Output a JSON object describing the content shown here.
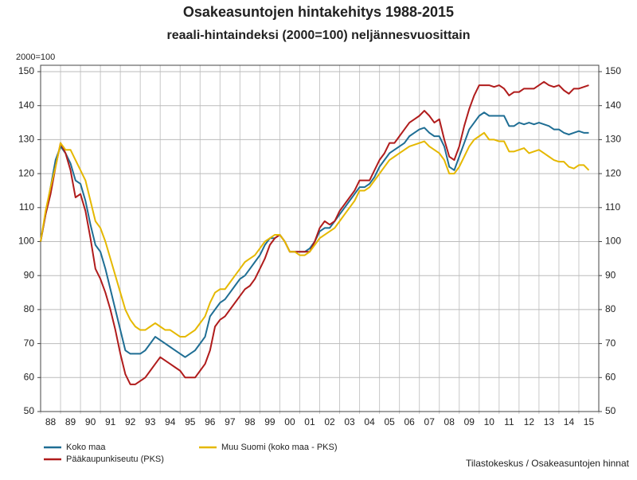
{
  "chart_data": {
    "type": "line",
    "title": "Osakeasuntojen hintakehitys 1988-2015",
    "subtitle": "reaali-hintaindeksi (2000=100) neljännesvuosittain",
    "y_label": "2000=100",
    "source": "Tilastokeskus / Osakeasuntojen hinnat",
    "categories": [
      null,
      "88",
      null,
      null,
      null,
      "89",
      null,
      null,
      null,
      "90",
      null,
      null,
      null,
      "91",
      null,
      null,
      null,
      "92",
      null,
      null,
      null,
      "93",
      null,
      null,
      null,
      "94",
      null,
      null,
      null,
      "95",
      null,
      null,
      null,
      "96",
      null,
      null,
      null,
      "97",
      null,
      null,
      null,
      "98",
      null,
      null,
      null,
      "99",
      null,
      null,
      null,
      "00",
      null,
      null,
      null,
      "01",
      null,
      null,
      null,
      "02",
      null,
      null,
      null,
      "03",
      null,
      null,
      null,
      "04",
      null,
      null,
      null,
      "05",
      null,
      null,
      null,
      "06",
      null,
      null,
      null,
      "07",
      null,
      null,
      null,
      "08",
      null,
      null,
      null,
      "09",
      null,
      null,
      null,
      "10",
      null,
      null,
      null,
      "11",
      null,
      null,
      null,
      "12",
      null,
      null,
      null,
      "13",
      null,
      null,
      null,
      "14",
      null,
      null,
      null,
      "15",
      null
    ],
    "series": [
      {
        "name": "Koko maa",
        "color": "#1f6e94",
        "values": [
          100,
          108,
          116,
          124,
          128,
          126,
          123,
          118,
          117,
          112,
          105,
          99,
          97,
          92,
          86,
          80,
          74,
          68,
          67,
          67,
          67,
          68,
          70,
          72,
          71,
          70,
          69,
          68,
          67,
          66,
          67,
          68,
          70,
          72,
          78,
          80,
          82,
          83,
          85,
          87,
          89,
          90,
          92,
          94,
          96,
          99,
          101,
          101,
          102,
          100,
          97,
          97,
          97,
          97,
          98,
          100,
          103,
          104,
          104,
          106,
          108,
          110,
          112,
          114,
          116,
          116,
          117,
          119,
          122,
          124,
          126,
          127,
          128,
          129,
          131,
          132,
          133,
          133.5,
          132,
          131,
          131,
          128,
          122,
          121,
          125,
          129,
          133,
          135,
          137,
          138,
          137,
          137,
          137,
          137,
          134,
          134,
          135,
          134.5,
          135,
          134.5,
          135,
          134.5,
          134,
          133,
          133,
          132,
          131.5,
          132,
          132.5,
          132,
          132
        ]
      },
      {
        "name": "Pääkaupunkiseutu (PKS)",
        "color": "#b01c1c",
        "values": [
          100,
          108,
          114,
          122,
          129,
          126,
          121,
          113,
          114,
          109,
          101,
          92,
          89,
          85,
          80,
          74,
          67,
          61,
          58,
          58,
          59,
          60,
          62,
          64,
          66,
          65,
          64,
          63,
          62,
          60,
          60,
          60,
          62,
          64,
          68,
          75,
          77,
          78,
          80,
          82,
          84,
          86,
          87,
          89,
          92,
          95,
          99,
          101,
          102,
          100,
          97,
          97,
          97,
          97,
          97,
          100,
          104,
          106,
          105,
          106,
          109,
          111,
          113,
          115,
          118,
          118,
          118,
          121,
          124,
          126,
          129,
          129,
          131,
          133,
          135,
          136,
          137,
          138.5,
          137,
          135,
          136,
          130,
          125,
          124,
          128,
          134,
          139,
          143,
          146,
          146,
          146,
          145.5,
          146,
          145,
          143,
          144,
          144,
          145,
          145,
          145,
          146,
          147,
          146,
          145.5,
          146,
          144.5,
          143.5,
          145,
          145,
          145.5,
          146
        ]
      },
      {
        "name": "Muu Suomi (koko maa - PKS)",
        "color": "#e5b800",
        "values": [
          100,
          109,
          116,
          122,
          129,
          127,
          127,
          124,
          121,
          118,
          112,
          106,
          104,
          100,
          95,
          90,
          85,
          80,
          77,
          75,
          74,
          74,
          75,
          76,
          75,
          74,
          74,
          73,
          72,
          72,
          73,
          74,
          76,
          78,
          82,
          85,
          86,
          86,
          88,
          90,
          92,
          94,
          95,
          96,
          98,
          100,
          101,
          102,
          102,
          100,
          97,
          97,
          96,
          96,
          97,
          99,
          101,
          102,
          103,
          104,
          106,
          108,
          110,
          112,
          115,
          115,
          116,
          118,
          120,
          122,
          124,
          125,
          126,
          127,
          128,
          128.5,
          129,
          129.5,
          128,
          127,
          126,
          124,
          120,
          120,
          122,
          125,
          128,
          130,
          131,
          132,
          130,
          130,
          129.5,
          129.5,
          126.5,
          126.5,
          127,
          127.5,
          126,
          126.5,
          127,
          126,
          125,
          124,
          123.5,
          123.5,
          122,
          121.5,
          122.5,
          122.5,
          121
        ]
      }
    ],
    "ylim": [
      50,
      150
    ],
    "yticks": [
      50,
      60,
      70,
      80,
      90,
      100,
      110,
      120,
      130,
      140,
      150
    ],
    "grid": true
  }
}
